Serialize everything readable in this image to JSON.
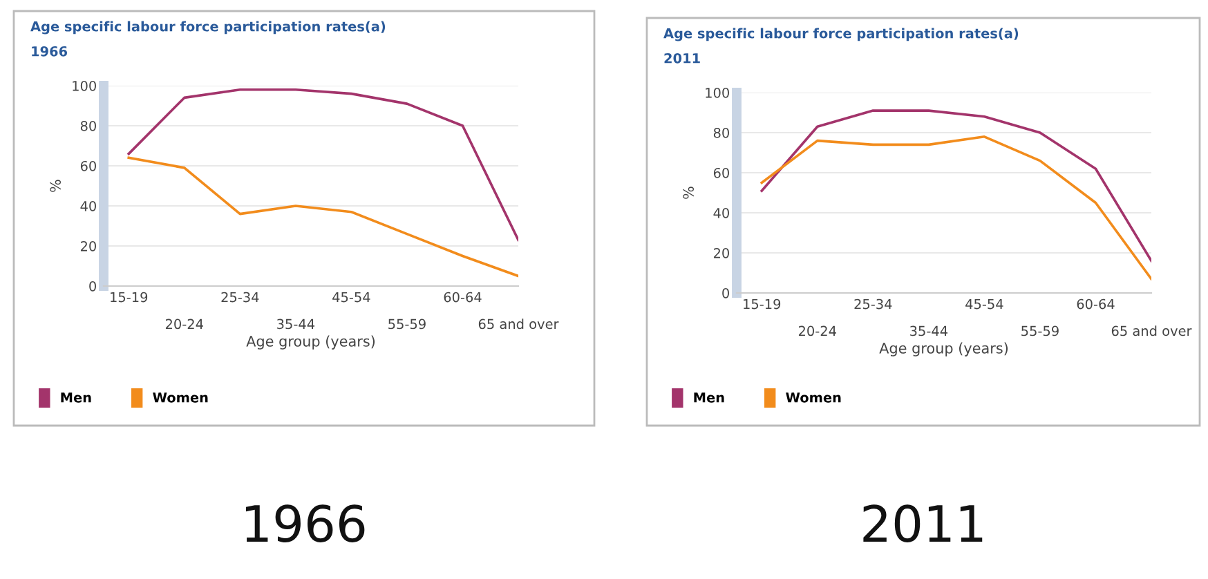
{
  "chart_data": [
    {
      "type": "line",
      "title": "Age specific labour force participation rates(a)",
      "subtitle": "1966",
      "xlabel": "Age group (years)",
      "ylabel": "%",
      "categories": [
        "15-19",
        "20-24",
        "25-34",
        "35-44",
        "45-54",
        "55-59",
        "60-64",
        "65 and over"
      ],
      "series": [
        {
          "name": "Men",
          "color": "#a3346b",
          "values": [
            66,
            94,
            98,
            98,
            96,
            91,
            80,
            23
          ]
        },
        {
          "name": "Women",
          "color": "#f28c1c",
          "values": [
            64,
            59,
            36,
            40,
            37,
            26,
            15,
            5
          ]
        }
      ],
      "ylim": [
        0,
        100
      ],
      "yticks": [
        0,
        20,
        40,
        60,
        80,
        100
      ],
      "grid": "y",
      "legend": "bottom",
      "marker": "none",
      "line_style": "solid",
      "annotations": [
        "1966"
      ]
    },
    {
      "type": "line",
      "title": "Age specific labour force participation rates(a)",
      "subtitle": "2011",
      "xlabel": "Age group (years)",
      "ylabel": "%",
      "categories": [
        "15-19",
        "20-24",
        "25-34",
        "35-44",
        "45-54",
        "55-59",
        "60-64",
        "65 and over"
      ],
      "series": [
        {
          "name": "Men",
          "color": "#a3346b",
          "values": [
            51,
            83,
            91,
            91,
            88,
            80,
            62,
            16
          ]
        },
        {
          "name": "Women",
          "color": "#f28c1c",
          "values": [
            55,
            76,
            74,
            74,
            78,
            66,
            45,
            7
          ]
        }
      ],
      "ylim": [
        0,
        100
      ],
      "yticks": [
        0,
        20,
        40,
        60,
        80,
        100
      ],
      "grid": "y",
      "legend": "bottom",
      "marker": "none",
      "line_style": "solid",
      "annotations": [
        "2011"
      ]
    }
  ]
}
